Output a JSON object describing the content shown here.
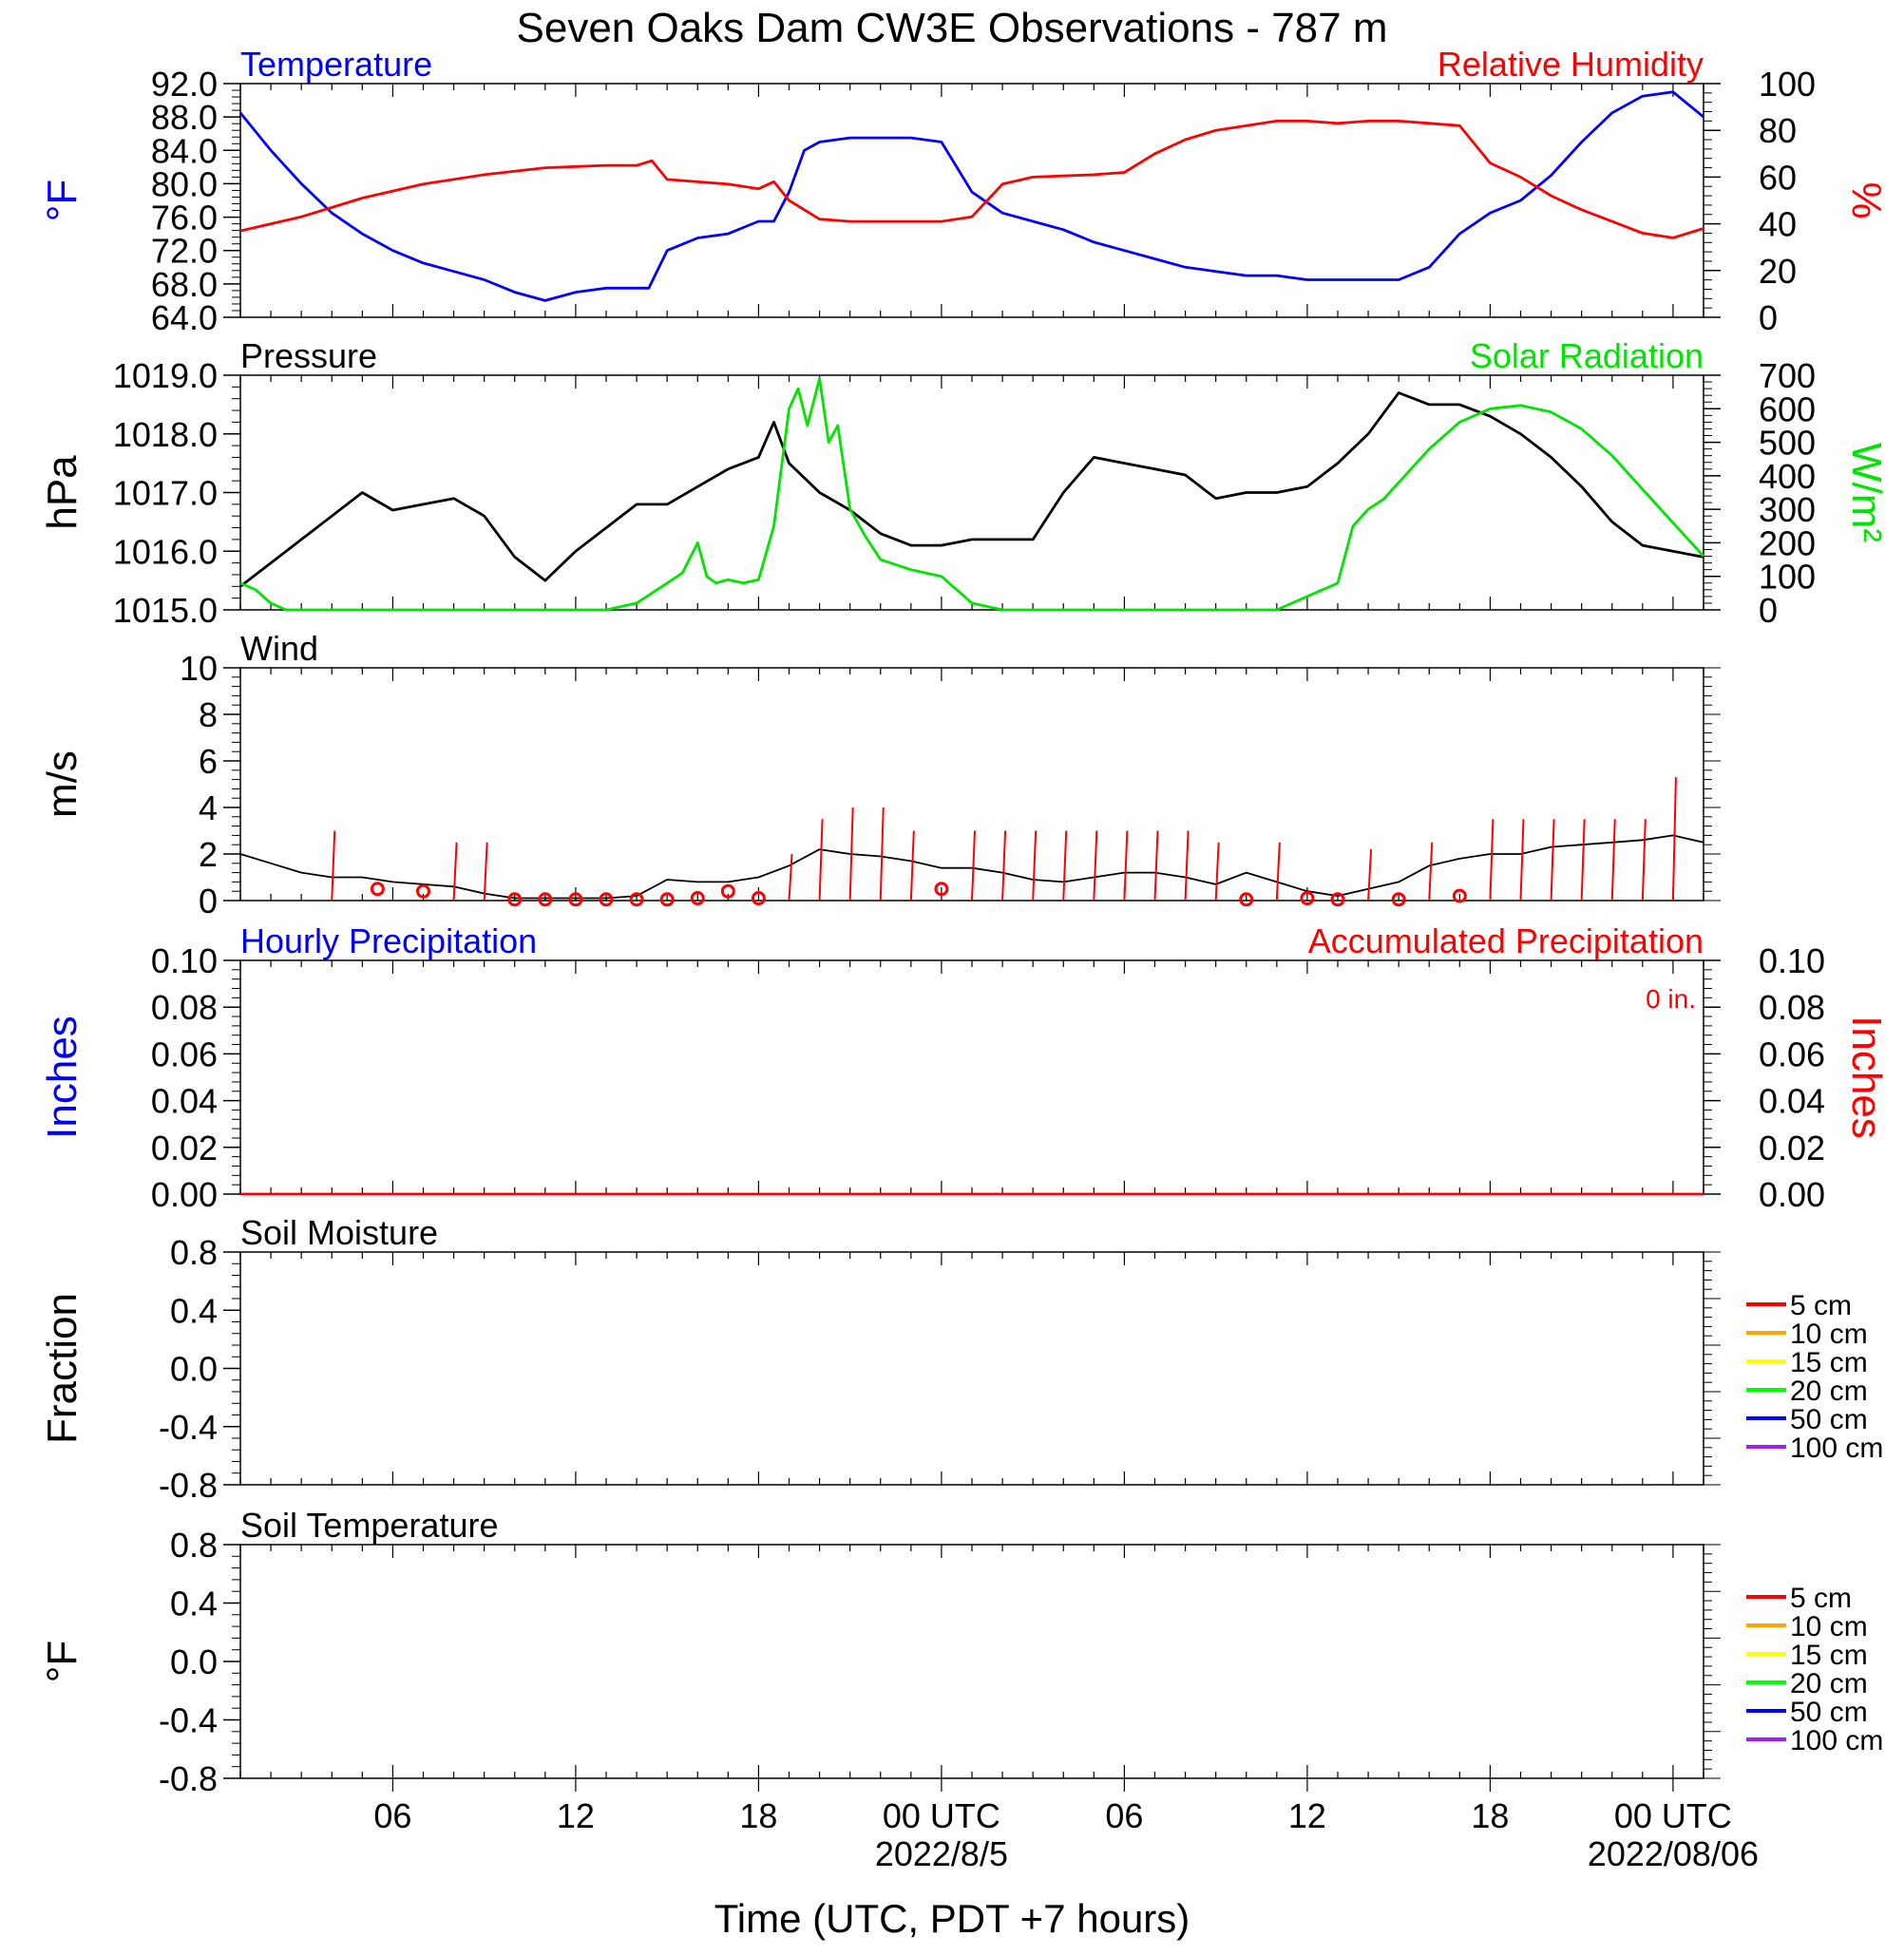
{
  "title": "Seven Oaks Dam CW3E Observations - 787 m",
  "xlabel": "Time (UTC, PDT +7 hours)",
  "x_ticks": [
    "06",
    "12",
    "18",
    "00 UTC",
    "06",
    "12",
    "18",
    "00 UTC"
  ],
  "x_dates": [
    "2022/8/5",
    "2022/08/06"
  ],
  "colors": {
    "temperature": "#0000ff",
    "humidity": "#ff0000",
    "pressure": "#000000",
    "solar": "#00e400",
    "wind": "#000000",
    "wind_barb": "#ff0000",
    "precip_hourly": "#0000ff",
    "precip_accum": "#ff0000"
  },
  "chart_data": [
    {
      "type": "line",
      "panel": "temperature-humidity",
      "x_unit": "hours since 2022-08-04 01 UTC",
      "left_title": "Temperature",
      "right_title": "Relative Humidity",
      "ylabel": "°F",
      "y2label": "%",
      "ylim": [
        64,
        92
      ],
      "y2lim": [
        0,
        100
      ],
      "yticks": [
        "92.0",
        "88.0",
        "84.0",
        "80.0",
        "76.0",
        "72.0",
        "68.0",
        "64.0"
      ],
      "y2ticks": [
        "100",
        "80",
        "60",
        "40",
        "20",
        "0"
      ],
      "series": [
        {
          "name": "Temperature",
          "axis": "left",
          "x": [
            0,
            1,
            2,
            3,
            4,
            5,
            6,
            7,
            8,
            9,
            10,
            11,
            12,
            13,
            13.4,
            14,
            15,
            16,
            17,
            17.5,
            18,
            18.5,
            19,
            20,
            21,
            22,
            23,
            23.5,
            24,
            25,
            26,
            27,
            28,
            29,
            30,
            31,
            32,
            33,
            34,
            35,
            36,
            37,
            38,
            39,
            40,
            41,
            42,
            43,
            44,
            45,
            46,
            47,
            47.5,
            48
          ],
          "y": [
            88.5,
            84,
            80,
            76.5,
            74,
            72,
            70.5,
            69.5,
            68.5,
            67,
            66,
            67,
            67.5,
            67.5,
            67.5,
            72,
            73.5,
            74,
            75.5,
            75.5,
            79,
            84,
            85,
            85.5,
            85.5,
            85.5,
            85,
            82,
            79,
            76.5,
            75.5,
            74.5,
            73,
            72,
            71,
            70,
            69.5,
            69,
            69,
            68.5,
            68.5,
            68.5,
            68.5,
            70,
            74,
            76.5,
            78,
            81,
            85,
            88.5,
            90.5,
            91,
            89.5,
            88
          ]
        },
        {
          "name": "Relative Humidity",
          "axis": "right",
          "x": [
            0,
            2,
            3,
            4,
            6,
            8,
            10,
            12,
            13,
            13.5,
            14,
            16,
            17,
            17.5,
            18,
            19,
            20,
            22,
            23,
            24,
            25,
            26,
            28,
            29,
            30,
            31,
            32,
            34,
            35,
            36,
            37,
            38,
            39,
            40,
            41,
            42,
            43,
            44,
            45,
            46,
            47,
            48
          ],
          "y": [
            37,
            43,
            47,
            51,
            57,
            61,
            64,
            65,
            65,
            67,
            59,
            57,
            55,
            58,
            50,
            42,
            41,
            41,
            41,
            43,
            57,
            60,
            61,
            62,
            70,
            76,
            80,
            84,
            84,
            83,
            84,
            84,
            83,
            82,
            66,
            60,
            52,
            46,
            41,
            36,
            34,
            38
          ]
        }
      ]
    },
    {
      "type": "line",
      "panel": "pressure-solar",
      "x_unit": "hours since 2022-08-04 01 UTC",
      "left_title": "Pressure",
      "right_title": "Solar Radiation",
      "ylabel": "hPa",
      "y2label": "W/m²",
      "ylim": [
        1015,
        1019
      ],
      "y2lim": [
        0,
        700
      ],
      "yticks": [
        "1019.0",
        "1018.0",
        "1017.0",
        "1016.0",
        "1015.0"
      ],
      "y2ticks": [
        "700",
        "600",
        "500",
        "400",
        "300",
        "200",
        "100",
        "0"
      ],
      "series": [
        {
          "name": "Pressure",
          "axis": "left",
          "x": [
            0,
            1,
            2,
            3,
            4,
            5,
            6,
            7,
            8,
            9,
            10,
            11,
            12,
            13,
            14,
            15,
            16,
            17,
            17.5,
            18,
            19,
            20,
            21,
            22,
            23,
            24,
            25,
            26,
            27,
            28,
            29,
            30,
            31,
            32,
            33,
            34,
            35,
            36,
            37,
            38,
            39,
            40,
            41,
            42,
            43,
            44,
            45,
            46,
            47,
            48
          ],
          "y": [
            1015.4,
            1015.8,
            1016.2,
            1016.6,
            1017.0,
            1016.7,
            1016.8,
            1016.9,
            1016.6,
            1015.9,
            1015.5,
            1016.0,
            1016.4,
            1016.8,
            1016.8,
            1017.1,
            1017.4,
            1017.6,
            1018.2,
            1017.5,
            1017.0,
            1016.7,
            1016.3,
            1016.1,
            1016.1,
            1016.2,
            1016.2,
            1016.2,
            1017.0,
            1017.6,
            1017.5,
            1017.4,
            1017.3,
            1016.9,
            1017.0,
            1017.0,
            1017.1,
            1017.5,
            1018.0,
            1018.7,
            1018.5,
            1018.5,
            1018.3,
            1018.0,
            1017.6,
            1017.1,
            1016.5,
            1016.1,
            1016.0,
            1015.9
          ]
        },
        {
          "name": "Solar Radiation",
          "axis": "right",
          "x": [
            0,
            0.5,
            1,
            1.5,
            12,
            13,
            14,
            14.5,
            15,
            15.3,
            15.6,
            16,
            16.5,
            17,
            17.5,
            18,
            18.3,
            18.6,
            19,
            19.3,
            19.6,
            20,
            20.5,
            21,
            22,
            23,
            24,
            25,
            28,
            34,
            36,
            36.5,
            37,
            37.5,
            38,
            39,
            40,
            41,
            42,
            43,
            44,
            45,
            46,
            47,
            48
          ],
          "y": [
            80,
            60,
            20,
            0,
            0,
            20,
            80,
            110,
            200,
            100,
            80,
            90,
            80,
            90,
            250,
            600,
            660,
            550,
            690,
            500,
            550,
            300,
            220,
            150,
            120,
            100,
            20,
            0,
            0,
            0,
            80,
            250,
            300,
            330,
            380,
            480,
            560,
            600,
            610,
            590,
            540,
            460,
            360,
            260,
            160
          ]
        }
      ]
    },
    {
      "type": "line",
      "panel": "wind",
      "x_unit": "hours since 2022-08-04 01 UTC",
      "left_title": "Wind",
      "ylabel": "m/s",
      "ylim": [
        0,
        10
      ],
      "yticks": [
        "10",
        "8",
        "6",
        "4",
        "2",
        "0"
      ],
      "series": [
        {
          "name": "Wind",
          "axis": "left",
          "x": [
            0,
            1,
            2,
            3,
            4,
            5,
            6,
            7,
            8,
            9,
            10,
            11,
            12,
            13,
            14,
            15,
            16,
            17,
            18,
            19,
            20,
            21,
            22,
            23,
            24,
            25,
            26,
            27,
            28,
            29,
            30,
            31,
            32,
            33,
            34,
            35,
            36,
            37,
            38,
            39,
            40,
            41,
            42,
            43,
            44,
            45,
            46,
            47,
            48
          ],
          "y": [
            2,
            1.6,
            1.2,
            1.0,
            1.0,
            0.8,
            0.7,
            0.6,
            0.3,
            0.1,
            0.1,
            0.1,
            0.1,
            0.2,
            0.9,
            0.8,
            0.8,
            1.0,
            1.5,
            2.2,
            2.0,
            1.9,
            1.7,
            1.4,
            1.4,
            1.2,
            0.9,
            0.8,
            1.0,
            1.2,
            1.2,
            1.0,
            0.7,
            1.2,
            0.8,
            0.4,
            0.2,
            0.5,
            0.8,
            1.5,
            1.8,
            2.0,
            2.0,
            2.3,
            2.4,
            2.5,
            2.6,
            2.8,
            2.5
          ]
        }
      ],
      "barbs": {
        "x": [
          3,
          4.5,
          6,
          7,
          8,
          9,
          10,
          11,
          12,
          13,
          14,
          15,
          16,
          17,
          18,
          19,
          20,
          21,
          22,
          23,
          24,
          25,
          26,
          27,
          28,
          29,
          30,
          31,
          32,
          33,
          34,
          35,
          36,
          37,
          38,
          39,
          40,
          41,
          42,
          43,
          44,
          45,
          46,
          47
        ],
        "speed": [
          3,
          0.5,
          0.4,
          2.5,
          2.5,
          0.05,
          0.05,
          0.05,
          0.05,
          0.05,
          0.05,
          0.1,
          0.4,
          0.1,
          2,
          3.5,
          4,
          4,
          3,
          0.5,
          3,
          3,
          3,
          3,
          3,
          3,
          3,
          3,
          2.5,
          0.05,
          2.5,
          0.1,
          0.05,
          2.2,
          0.05,
          2.5,
          0.2,
          3.5,
          3.5,
          3.5,
          3.5,
          3.5,
          3.5,
          5.3
        ],
        "calm": [
          false,
          true,
          true,
          false,
          false,
          true,
          true,
          true,
          true,
          true,
          true,
          true,
          true,
          true,
          false,
          false,
          false,
          false,
          false,
          true,
          false,
          false,
          false,
          false,
          false,
          false,
          false,
          false,
          false,
          true,
          false,
          true,
          true,
          false,
          true,
          false,
          true,
          false,
          false,
          false,
          false,
          false,
          false,
          false
        ]
      }
    },
    {
      "type": "line",
      "panel": "precipitation",
      "x_unit": "hours since 2022-08-04 01 UTC",
      "left_title": "Hourly Precipitation",
      "right_title": "Accumulated Precipitation",
      "annotation": "0 in.",
      "ylabel": "Inches",
      "y2label": "Inches",
      "ylim": [
        0,
        0.1
      ],
      "y2lim": [
        0,
        0.1
      ],
      "yticks": [
        "0.10",
        "0.08",
        "0.06",
        "0.04",
        "0.02",
        "0.00"
      ],
      "y2ticks": [
        "0.10",
        "0.08",
        "0.06",
        "0.04",
        "0.02",
        "0.00"
      ],
      "series": [
        {
          "name": "Accumulated Precipitation",
          "axis": "right",
          "x": [
            0,
            48
          ],
          "y": [
            0,
            0
          ]
        }
      ]
    },
    {
      "type": "line",
      "panel": "soil-moisture",
      "left_title": "Soil Moisture",
      "ylabel": "Fraction",
      "ylim": [
        -1,
        1
      ],
      "yticks": [
        "0.8",
        "0.4",
        "0.0",
        "-0.4",
        "-0.8"
      ],
      "legend": [
        {
          "name": "5 cm",
          "color": "#ff0000"
        },
        {
          "name": "10 cm",
          "color": "#ffa500"
        },
        {
          "name": "15 cm",
          "color": "#ffff00"
        },
        {
          "name": "20 cm",
          "color": "#00ff00"
        },
        {
          "name": "50 cm",
          "color": "#0000ff"
        },
        {
          "name": "100 cm",
          "color": "#a020f0"
        }
      ],
      "series": []
    },
    {
      "type": "line",
      "panel": "soil-temperature",
      "left_title": "Soil Temperature",
      "ylabel": "°F",
      "ylim": [
        -1,
        1
      ],
      "yticks": [
        "0.8",
        "0.4",
        "0.0",
        "-0.4",
        "-0.8"
      ],
      "legend": [
        {
          "name": "5 cm",
          "color": "#ff0000"
        },
        {
          "name": "10 cm",
          "color": "#ffa500"
        },
        {
          "name": "15 cm",
          "color": "#ffff00"
        },
        {
          "name": "20 cm",
          "color": "#00ff00"
        },
        {
          "name": "50 cm",
          "color": "#0000ff"
        },
        {
          "name": "100 cm",
          "color": "#a020f0"
        }
      ],
      "series": []
    }
  ]
}
